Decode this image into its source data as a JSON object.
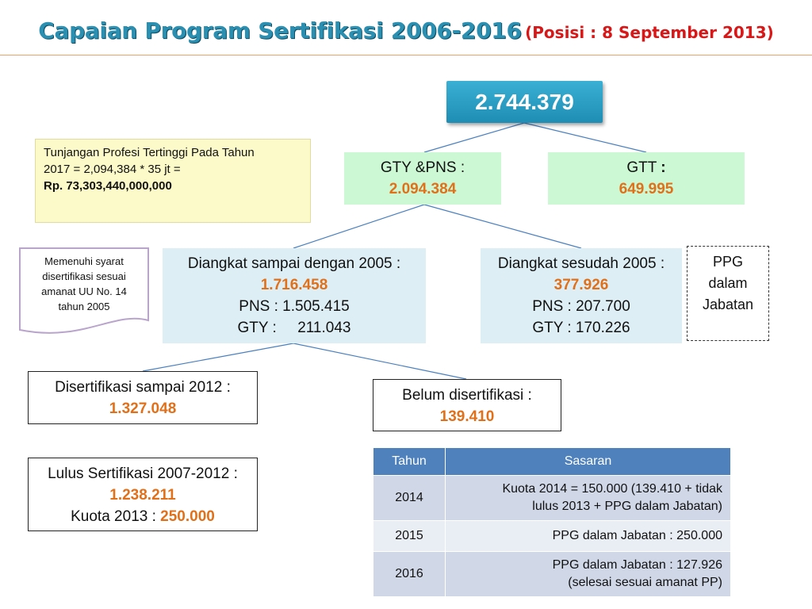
{
  "title": {
    "main": "Capaian Program Sertifikasi 2006-2016",
    "sub": "(Posisi : 8 September 2013)"
  },
  "total": "2.744.379",
  "gty_pns": {
    "label": "GTY &PNS :",
    "value": "2.094.384"
  },
  "gtt": {
    "label": "GTT",
    "colon": ":",
    "value": "649.995"
  },
  "note": {
    "line1": "Tunjangan Profesi Tertinggi Pada Tahun",
    "line2": "2017 = 2,094,384 * 35 jt =",
    "line3": "Rp. 73,303,440,000,000"
  },
  "doc_note": {
    "line1": "Memenuhi syarat",
    "line2": "disertifikasi sesuai",
    "line3": "amanat UU No. 14",
    "line4": "tahun 2005"
  },
  "before_2005": {
    "label": "Diangkat sampai dengan 2005 :",
    "value": "1.716.458",
    "pns": "PNS : 1.505.415",
    "gty": "GTY :     211.043"
  },
  "after_2005": {
    "label": "Diangkat sesudah 2005 :",
    "value": "377.926",
    "pns": "PNS : 207.700",
    "gty": "GTY : 170.226"
  },
  "ppg": {
    "line1": "PPG",
    "line2": "dalam",
    "line3": "Jabatan"
  },
  "certified": {
    "label": "Disertifikasi sampai  2012 :",
    "value": "1.327.048"
  },
  "not_certified": {
    "label": "Belum disertifikasi :",
    "value": "139.410"
  },
  "passed": {
    "label": "Lulus Sertifikasi 2007-2012 :",
    "value": "1.238.211",
    "quota_label": "Kuota 2013 : ",
    "quota_value": "250.000"
  },
  "table": {
    "headers": [
      "Tahun",
      "Sasaran"
    ],
    "rows": [
      {
        "year": "2014",
        "line1": "Kuota 2014 = 150.000 (139.410 + tidak",
        "line2": "lulus 2013 + PPG dalam Jabatan)"
      },
      {
        "year": "2015",
        "line1": "PPG dalam Jabatan : 250.000",
        "line2": ""
      },
      {
        "year": "2016",
        "line1": "PPG dalam Jabatan : 127.926",
        "line2": "(selesai sesuai amanat PP)"
      }
    ]
  },
  "colors": {
    "title": "#2a8fb0",
    "subtitle": "#d81818",
    "highlight": "#e0701a",
    "total_box": "#2a9fc6",
    "green_box": "#ccf8d4",
    "blue_box": "#ddeef5",
    "table_header": "#4f81bd"
  }
}
